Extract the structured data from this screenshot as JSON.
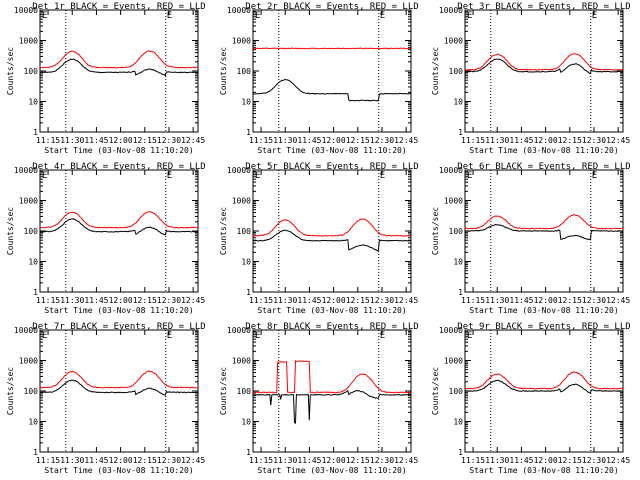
{
  "panel_titles": [
    "Det 1r BLACK = Events, RED = LLD",
    "Det 2r BLACK = Events, RED = LLD",
    "Det 3r BLACK = Events, RED = LLD",
    "Det 4r BLACK = Events, RED = LLD",
    "Det 5r BLACK = Events, RED = LLD",
    "Det 6r BLACK = Events, RED = LLD",
    "Det 7r BLACK = Events, RED = LLD",
    "Det 8r BLACK = Events, RED = LLD",
    "Det 9r BLACK = Events, RED = LLD"
  ],
  "common": {
    "ylabel": "Counts/sec",
    "xlabel": "Start Time (03-Nov-08 11:10:20)",
    "x_ticks": [
      "11:15",
      "11:30",
      "11:45",
      "12:00",
      "12:15",
      "12:30",
      "12:45"
    ],
    "y_ticks": [
      "1",
      "10",
      "100",
      "1000",
      "10000"
    ],
    "corner_mark": "E",
    "colors": {
      "events": "#000000",
      "lld": "#ff0000",
      "axes": "#000000"
    }
  },
  "chart_data": [
    {
      "type": "line",
      "title": "Det 1r BLACK = Events, RED = LLD",
      "xlabel": "Start Time (03-Nov-08 11:10:20)",
      "ylabel": "Counts/sec",
      "yscale": "log",
      "ylim": [
        1,
        10000
      ],
      "xlim": [
        "11:10",
        "12:48"
      ],
      "vlines": [
        "11:26",
        "12:28"
      ],
      "series": [
        {
          "name": "Events",
          "color": "#000000",
          "base": 90,
          "bumps": [
            [
              11.5,
              2.7
            ],
            [
              12.3,
              1.7
            ]
          ],
          "step": {
            "at": 12.15,
            "factor": 0.75
          }
        },
        {
          "name": "LLD",
          "color": "#ff0000",
          "base": 130,
          "bumps": [
            [
              11.5,
              3.4
            ],
            [
              12.3,
              3.5
            ]
          ]
        }
      ]
    },
    {
      "type": "line",
      "title": "Det 2r BLACK = Events, RED = LLD",
      "xlabel": "Start Time (03-Nov-08 11:10:20)",
      "ylabel": "Counts/sec",
      "yscale": "log",
      "ylim": [
        1,
        10000
      ],
      "xlim": [
        "11:10",
        "12:48"
      ],
      "vlines": [
        "11:26",
        "12:28"
      ],
      "series": [
        {
          "name": "Events",
          "color": "#000000",
          "base": 18,
          "bumps": [
            [
              11.5,
              2.9
            ]
          ],
          "step": {
            "at": 12.15,
            "factor": 0.6
          }
        },
        {
          "name": "LLD",
          "color": "#ff0000",
          "base": 550,
          "bumps": []
        }
      ]
    },
    {
      "type": "line",
      "title": "Det 3r BLACK = Events, RED = LLD",
      "xlabel": "Start Time (03-Nov-08 11:10:20)",
      "ylabel": "Counts/sec",
      "yscale": "log",
      "ylim": [
        1,
        10000
      ],
      "xlim": [
        "11:10",
        "12:48"
      ],
      "vlines": [
        "11:26",
        "12:28"
      ],
      "series": [
        {
          "name": "Events",
          "color": "#000000",
          "base": 95,
          "bumps": [
            [
              11.5,
              2.6
            ],
            [
              12.3,
              2.4
            ]
          ],
          "step": {
            "at": 12.15,
            "factor": 0.75
          }
        },
        {
          "name": "LLD",
          "color": "#ff0000",
          "base": 110,
          "bumps": [
            [
              11.5,
              3.2
            ],
            [
              12.3,
              3.4
            ]
          ]
        }
      ]
    },
    {
      "type": "line",
      "title": "Det 4r BLACK = Events, RED = LLD",
      "xlabel": "Start Time (03-Nov-08 11:10:20)",
      "ylabel": "Counts/sec",
      "yscale": "log",
      "ylim": [
        1,
        10000
      ],
      "xlim": [
        "11:10",
        "12:48"
      ],
      "vlines": [
        "11:26",
        "12:28"
      ],
      "series": [
        {
          "name": "Events",
          "color": "#000000",
          "base": 95,
          "bumps": [
            [
              11.5,
              2.6
            ],
            [
              12.3,
              2.0
            ]
          ],
          "step": {
            "at": 12.15,
            "factor": 0.7
          }
        },
        {
          "name": "LLD",
          "color": "#ff0000",
          "base": 130,
          "bumps": [
            [
              11.5,
              3.2
            ],
            [
              12.3,
              3.3
            ]
          ]
        }
      ]
    },
    {
      "type": "line",
      "title": "Det 5r BLACK = Events, RED = LLD",
      "xlabel": "Start Time (03-Nov-08 11:10:20)",
      "ylabel": "Counts/sec",
      "yscale": "log",
      "ylim": [
        1,
        10000
      ],
      "xlim": [
        "11:10",
        "12:48"
      ],
      "vlines": [
        "11:26",
        "12:28"
      ],
      "series": [
        {
          "name": "Events",
          "color": "#000000",
          "base": 48,
          "bumps": [
            [
              11.5,
              2.2
            ],
            [
              12.3,
              1.6
            ]
          ],
          "step": {
            "at": 12.15,
            "factor": 0.45
          }
        },
        {
          "name": "LLD",
          "color": "#ff0000",
          "base": 70,
          "bumps": [
            [
              11.5,
              3.3
            ],
            [
              12.3,
              3.5
            ]
          ]
        }
      ]
    },
    {
      "type": "line",
      "title": "Det 6r BLACK = Events, RED = LLD",
      "xlabel": "Start Time (03-Nov-08 11:10:20)",
      "ylabel": "Counts/sec",
      "yscale": "log",
      "ylim": [
        1,
        10000
      ],
      "xlim": [
        "11:10",
        "12:48"
      ],
      "vlines": [
        "11:26",
        "12:28"
      ],
      "series": [
        {
          "name": "Events",
          "color": "#000000",
          "base": 100,
          "bumps": [
            [
              11.5,
              1.6
            ],
            [
              12.3,
              1.4
            ]
          ],
          "step": {
            "at": 12.15,
            "factor": 0.5
          }
        },
        {
          "name": "LLD",
          "color": "#ff0000",
          "base": 120,
          "bumps": [
            [
              11.5,
              2.6
            ],
            [
              12.3,
              2.8
            ]
          ]
        }
      ]
    },
    {
      "type": "line",
      "title": "Det 7r BLACK = Events, RED = LLD",
      "xlabel": "Start Time (03-Nov-08 11:10:20)",
      "ylabel": "Counts/sec",
      "yscale": "log",
      "ylim": [
        1,
        10000
      ],
      "xlim": [
        "11:10",
        "12:48"
      ],
      "vlines": [
        "11:26",
        "12:28"
      ],
      "series": [
        {
          "name": "Events",
          "color": "#000000",
          "base": 90,
          "bumps": [
            [
              11.5,
              2.5
            ],
            [
              12.3,
              1.8
            ]
          ],
          "step": {
            "at": 12.15,
            "factor": 0.75
          }
        },
        {
          "name": "LLD",
          "color": "#ff0000",
          "base": 130,
          "bumps": [
            [
              11.5,
              3.3
            ],
            [
              12.3,
              3.4
            ]
          ]
        }
      ]
    },
    {
      "type": "line",
      "title": "Det 8r BLACK = Events, RED = LLD",
      "xlabel": "Start Time (03-Nov-08 11:10:20)",
      "ylabel": "Counts/sec",
      "yscale": "log",
      "ylim": [
        1,
        10000
      ],
      "xlim": [
        "11:10",
        "12:48"
      ],
      "vlines": [
        "11:26",
        "12:28"
      ],
      "series": [
        {
          "name": "Events",
          "color": "#000000",
          "base": 75,
          "bumps": [
            [
              12.25,
              1.8
            ]
          ],
          "step": {
            "at": 12.15,
            "factor": 0.75
          },
          "spikes": [
            [
              11.35,
              0.45
            ],
            [
              11.45,
              0.7
            ],
            [
              11.6,
              0.12
            ],
            [
              11.75,
              0.15
            ]
          ]
        },
        {
          "name": "LLD",
          "color": "#ff0000",
          "base": 90,
          "bumps": [
            [
              12.3,
              4.0
            ]
          ],
          "blocks": [
            [
              11.42,
              11.52,
              900
            ],
            [
              11.6,
              11.75,
              950
            ]
          ]
        }
      ]
    },
    {
      "type": "line",
      "title": "Det 9r BLACK = Events, RED = LLD",
      "xlabel": "Start Time (03-Nov-08 11:10:20)",
      "ylabel": "Counts/sec",
      "yscale": "log",
      "ylim": [
        1,
        10000
      ],
      "xlim": [
        "11:10",
        "12:48"
      ],
      "vlines": [
        "11:26",
        "12:28"
      ],
      "series": [
        {
          "name": "Events",
          "color": "#000000",
          "base": 100,
          "bumps": [
            [
              11.5,
              2.2
            ],
            [
              12.3,
              2.2
            ]
          ],
          "step": {
            "at": 12.15,
            "factor": 0.75
          }
        },
        {
          "name": "LLD",
          "color": "#ff0000",
          "base": 120,
          "bumps": [
            [
              11.5,
              3.0
            ],
            [
              12.3,
              3.5
            ]
          ]
        }
      ]
    }
  ]
}
